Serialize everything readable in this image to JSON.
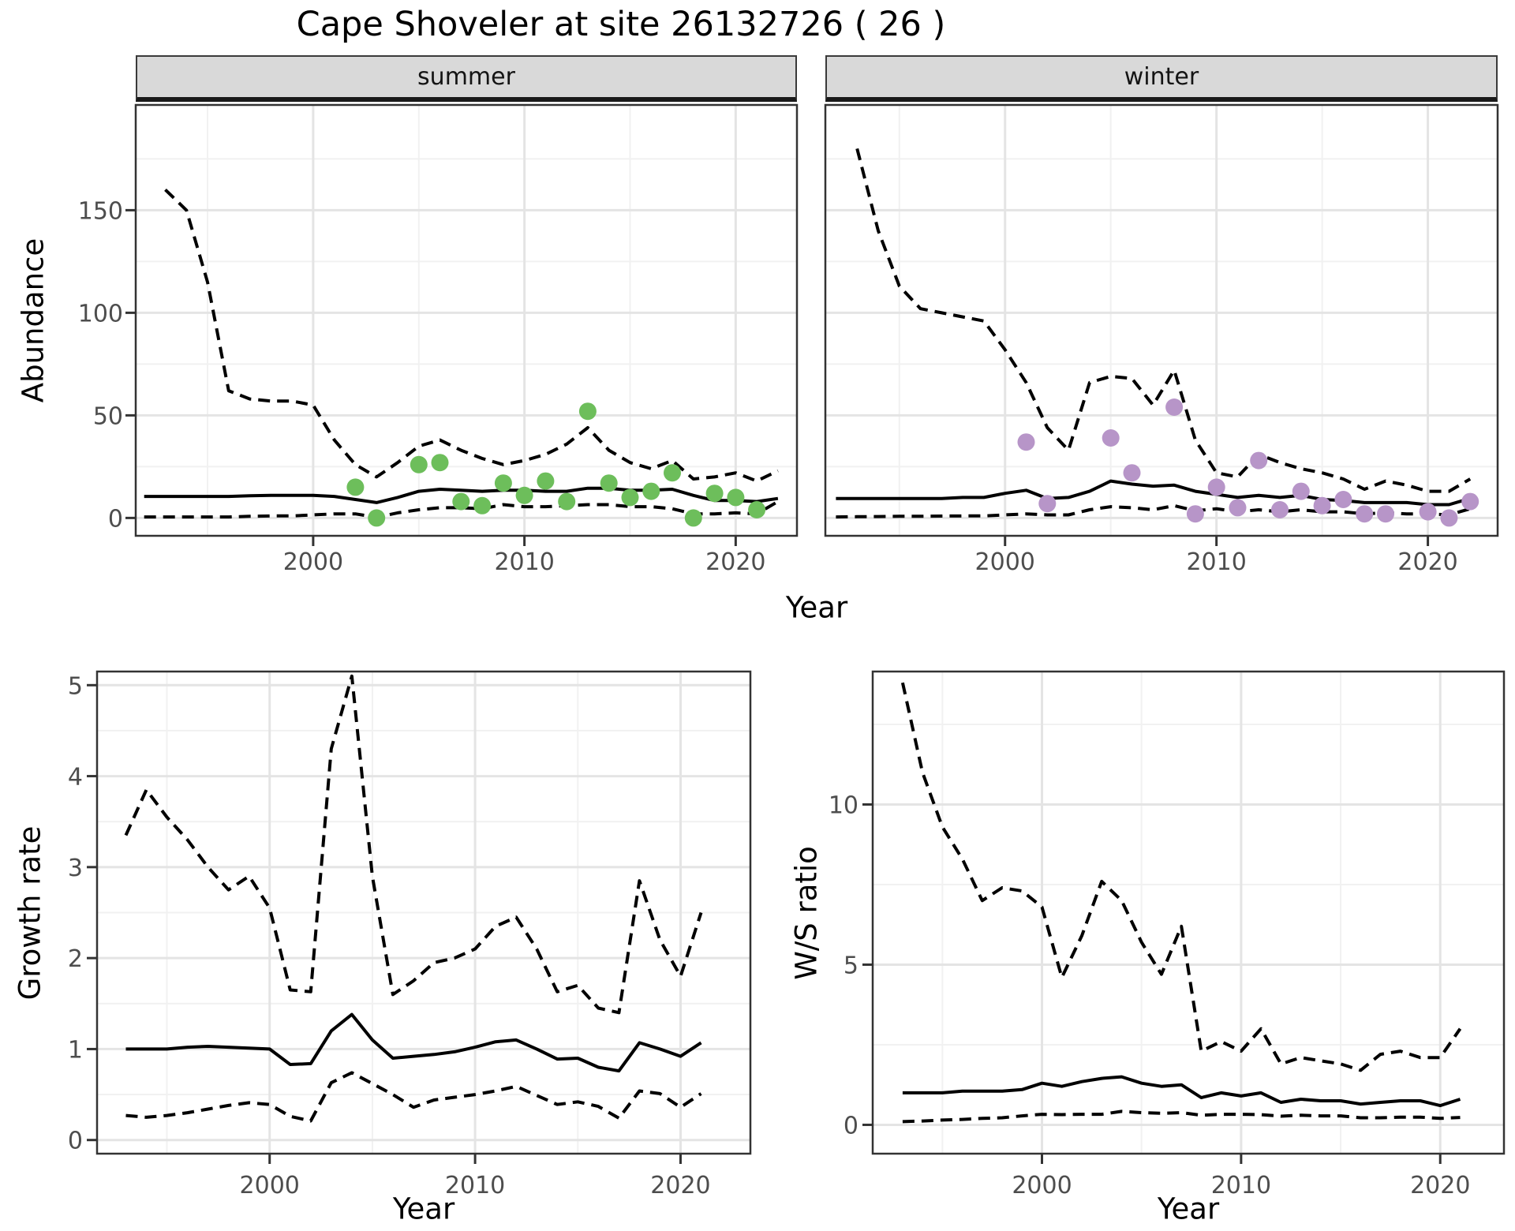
{
  "title": "Cape Shoveler at site 26132726 ( 26 )",
  "facets": {
    "summer": "summer",
    "winter": "winter"
  },
  "axes": {
    "abundance_label": "Abundance",
    "year_label": "Year",
    "growth_label": "Growth rate",
    "ws_label": "W/S ratio"
  },
  "colors": {
    "summer_points": "#6dbe5b",
    "winter_points": "#b795c8",
    "line": "#000000",
    "grid_major": "#e4e4e4",
    "grid_minor": "#f1f1f1",
    "strip_bg": "#d9d9d9",
    "panel_border": "#333333",
    "tick_text": "#4d4d4d"
  },
  "chart_data": [
    {
      "type": "line",
      "name": "abundance-summer",
      "facet": "summer",
      "xlabel": "Year",
      "ylabel": "Abundance",
      "xlim": [
        1991.6,
        2022.9
      ],
      "ylim": [
        -8.7,
        201.3
      ],
      "xticks": [
        2000,
        2010,
        2020
      ],
      "yticks": [
        0,
        50,
        100,
        150
      ],
      "xminor": [
        1995,
        2005,
        2015
      ],
      "yminor": [
        25,
        75,
        125,
        175
      ],
      "grid": true,
      "series": [
        {
          "name": "upper-ci",
          "style": "dashed",
          "x": [
            1993,
            1994,
            1995,
            1996,
            1997,
            1998,
            1999,
            2000,
            2001,
            2002,
            2003,
            2004,
            2005,
            2006,
            2007,
            2008,
            2009,
            2010,
            2011,
            2012,
            2013,
            2014,
            2015,
            2016,
            2017,
            2018,
            2019,
            2020,
            2021,
            2022
          ],
          "y": [
            160,
            150,
            115,
            62,
            58,
            57,
            57,
            55,
            38,
            26,
            20,
            27,
            35,
            38,
            33,
            29,
            26,
            28,
            31,
            36,
            44,
            33,
            27,
            24,
            28,
            19,
            20,
            22,
            18,
            23
          ]
        },
        {
          "name": "median",
          "style": "solid",
          "x": [
            1992,
            1993,
            1994,
            1995,
            1996,
            1997,
            1998,
            1999,
            2000,
            2001,
            2002,
            2003,
            2004,
            2005,
            2006,
            2007,
            2008,
            2009,
            2010,
            2011,
            2012,
            2013,
            2014,
            2015,
            2016,
            2017,
            2018,
            2019,
            2020,
            2021,
            2022
          ],
          "y": [
            10.5,
            10.5,
            10.5,
            10.5,
            10.5,
            10.8,
            11,
            11,
            11,
            10.5,
            9,
            7.5,
            10,
            13,
            14,
            13.5,
            13,
            13.5,
            13.5,
            13,
            13,
            14.5,
            14.5,
            13.5,
            13.5,
            14,
            11,
            8.5,
            8.5,
            8,
            9.5
          ]
        },
        {
          "name": "lower-ci",
          "style": "dashed",
          "x": [
            1992,
            1993,
            1994,
            1995,
            1996,
            1997,
            1998,
            1999,
            2000,
            2001,
            2002,
            2003,
            2004,
            2005,
            2006,
            2007,
            2008,
            2009,
            2010,
            2011,
            2012,
            2013,
            2014,
            2015,
            2016,
            2017,
            2018,
            2019,
            2020,
            2021,
            2022
          ],
          "y": [
            0.5,
            0.5,
            0.5,
            0.5,
            0.5,
            0.8,
            1,
            1,
            1.5,
            2,
            2,
            0.3,
            2.5,
            4,
            5,
            5,
            4.5,
            6.5,
            5.5,
            5.5,
            6,
            6.5,
            6.5,
            5.5,
            5.5,
            4.5,
            2,
            2,
            2.5,
            2,
            8
          ]
        }
      ],
      "points": {
        "name": "observed-counts",
        "color_key": "summer_points",
        "x": [
          2002,
          2003,
          2005,
          2006,
          2007,
          2008,
          2009,
          2010,
          2011,
          2012,
          2013,
          2014,
          2015,
          2016,
          2017,
          2018,
          2019,
          2020,
          2021
        ],
        "y": [
          15,
          0,
          26,
          27,
          8,
          6,
          17,
          11,
          18,
          8,
          52,
          17,
          10,
          13,
          22,
          0,
          12,
          10,
          4
        ]
      }
    },
    {
      "type": "line",
      "name": "abundance-winter",
      "facet": "winter",
      "xlabel": "Year",
      "ylabel": "Abundance",
      "xlim": [
        1991.5,
        2023.3
      ],
      "ylim": [
        -8.7,
        201.3
      ],
      "xticks": [
        2000,
        2010,
        2020
      ],
      "yticks": [
        0,
        50,
        100,
        150
      ],
      "xminor": [
        1995,
        2005,
        2015
      ],
      "yminor": [
        25,
        75,
        125,
        175
      ],
      "grid": true,
      "series": [
        {
          "name": "upper-ci",
          "style": "dashed",
          "x": [
            1993,
            1994,
            1995,
            1996,
            1997,
            1998,
            1999,
            2000,
            2001,
            2002,
            2003,
            2004,
            2005,
            2006,
            2007,
            2008,
            2009,
            2010,
            2011,
            2012,
            2013,
            2014,
            2015,
            2016,
            2017,
            2018,
            2019,
            2020,
            2021,
            2022
          ],
          "y": [
            180,
            140,
            113,
            102,
            100,
            98,
            96,
            82,
            66,
            44,
            33,
            66,
            69,
            68,
            55,
            72,
            38,
            22,
            20,
            31,
            27,
            24,
            22,
            19,
            14,
            18,
            16,
            13,
            13,
            19
          ]
        },
        {
          "name": "median",
          "style": "solid",
          "x": [
            1992,
            1993,
            1994,
            1995,
            1996,
            1997,
            1998,
            1999,
            2000,
            2001,
            2002,
            2003,
            2004,
            2005,
            2006,
            2007,
            2008,
            2009,
            2010,
            2011,
            2012,
            2013,
            2014,
            2015,
            2016,
            2017,
            2018,
            2019,
            2020,
            2021,
            2022
          ],
          "y": [
            9.5,
            9.5,
            9.5,
            9.5,
            9.5,
            9.5,
            10,
            10,
            12,
            13.5,
            9.5,
            10,
            13,
            18,
            16.5,
            15.5,
            16,
            13,
            11.5,
            10,
            11,
            10,
            11,
            9,
            8.5,
            7.5,
            7.5,
            7.5,
            6.5,
            6.5,
            9.5
          ]
        },
        {
          "name": "lower-ci",
          "style": "dashed",
          "x": [
            1992,
            1993,
            1994,
            1995,
            1996,
            1997,
            1998,
            1999,
            2000,
            2001,
            2002,
            2003,
            2004,
            2005,
            2006,
            2007,
            2008,
            2009,
            2010,
            2011,
            2012,
            2013,
            2014,
            2015,
            2016,
            2017,
            2018,
            2019,
            2020,
            2021,
            2022
          ],
          "y": [
            0.5,
            0.6,
            0.7,
            0.8,
            0.8,
            0.9,
            1,
            1,
            1.5,
            2,
            1.5,
            1.5,
            4,
            5.5,
            5,
            4,
            6,
            3.5,
            4.5,
            3,
            4,
            3,
            4,
            3,
            3,
            2,
            2.5,
            2,
            2,
            1.5,
            4.5
          ]
        }
      ],
      "points": {
        "name": "observed-counts",
        "color_key": "winter_points",
        "x": [
          2001,
          2002,
          2005,
          2006,
          2008,
          2009,
          2010,
          2011,
          2012,
          2013,
          2014,
          2015,
          2016,
          2017,
          2018,
          2020,
          2021,
          2022
        ],
        "y": [
          37,
          7,
          39,
          22,
          54,
          2,
          15,
          5,
          28,
          4,
          13,
          6,
          9,
          2,
          2,
          3,
          0,
          8
        ]
      }
    },
    {
      "type": "line",
      "name": "growth-rate",
      "xlabel": "Year",
      "ylabel": "Growth rate",
      "xlim": [
        1991.6,
        2023.4
      ],
      "ylim": [
        -0.15,
        5.15
      ],
      "xticks": [
        2000,
        2010,
        2020
      ],
      "yticks": [
        0,
        1,
        2,
        3,
        4,
        5
      ],
      "xminor": [
        1995,
        2005,
        2015
      ],
      "yminor": [
        0.5,
        1.5,
        2.5,
        3.5,
        4.5
      ],
      "grid": true,
      "series": [
        {
          "name": "upper-ci",
          "style": "dashed",
          "x": [
            1993,
            1994,
            1995,
            1996,
            1997,
            1998,
            1999,
            2000,
            2001,
            2002,
            2003,
            2004,
            2005,
            2006,
            2007,
            2008,
            2009,
            2010,
            2011,
            2012,
            2013,
            2014,
            2015,
            2016,
            2017,
            2018,
            2019,
            2020,
            2021
          ],
          "y": [
            3.35,
            3.85,
            3.55,
            3.3,
            3.0,
            2.75,
            2.9,
            2.55,
            1.65,
            1.63,
            4.3,
            5.1,
            2.9,
            1.6,
            1.75,
            1.95,
            2.0,
            2.1,
            2.35,
            2.45,
            2.1,
            1.63,
            1.7,
            1.45,
            1.4,
            2.85,
            2.2,
            1.8,
            2.5
          ]
        },
        {
          "name": "median",
          "style": "solid",
          "x": [
            1993,
            1994,
            1995,
            1996,
            1997,
            1998,
            1999,
            2000,
            2001,
            2002,
            2003,
            2004,
            2005,
            2006,
            2007,
            2008,
            2009,
            2010,
            2011,
            2012,
            2013,
            2014,
            2015,
            2016,
            2017,
            2018,
            2019,
            2020,
            2021
          ],
          "y": [
            1.0,
            1.0,
            1.0,
            1.02,
            1.03,
            1.02,
            1.01,
            1.0,
            0.83,
            0.84,
            1.2,
            1.38,
            1.1,
            0.9,
            0.92,
            0.94,
            0.97,
            1.02,
            1.08,
            1.1,
            1.0,
            0.89,
            0.9,
            0.8,
            0.76,
            1.07,
            1.0,
            0.92,
            1.07
          ]
        },
        {
          "name": "lower-ci",
          "style": "dashed",
          "x": [
            1993,
            1994,
            1995,
            1996,
            1997,
            1998,
            1999,
            2000,
            2001,
            2002,
            2003,
            2004,
            2005,
            2006,
            2007,
            2008,
            2009,
            2010,
            2011,
            2012,
            2013,
            2014,
            2015,
            2016,
            2017,
            2018,
            2019,
            2020,
            2021
          ],
          "y": [
            0.27,
            0.25,
            0.27,
            0.3,
            0.34,
            0.38,
            0.41,
            0.39,
            0.26,
            0.21,
            0.63,
            0.74,
            0.62,
            0.5,
            0.36,
            0.44,
            0.47,
            0.5,
            0.54,
            0.59,
            0.49,
            0.39,
            0.42,
            0.37,
            0.24,
            0.54,
            0.51,
            0.36,
            0.51
          ]
        }
      ]
    },
    {
      "type": "line",
      "name": "ws-ratio",
      "xlabel": "Year",
      "ylabel": "W/S ratio",
      "xlim": [
        1991.5,
        2023.2
      ],
      "ylim": [
        -0.9,
        14.15
      ],
      "xticks": [
        2000,
        2010,
        2020
      ],
      "yticks": [
        0,
        5,
        10
      ],
      "xminor": [
        1995,
        2005,
        2015
      ],
      "yminor": [
        2.5,
        7.5,
        12.5
      ],
      "grid": true,
      "series": [
        {
          "name": "upper-ci",
          "style": "dashed",
          "x": [
            1993,
            1994,
            1995,
            1996,
            1997,
            1998,
            1999,
            2000,
            2001,
            2002,
            2003,
            2004,
            2005,
            2006,
            2007,
            2008,
            2009,
            2010,
            2011,
            2012,
            2013,
            2014,
            2015,
            2016,
            2017,
            2018,
            2019,
            2020,
            2021
          ],
          "y": [
            13.8,
            11.0,
            9.3,
            8.3,
            7.0,
            7.4,
            7.3,
            6.8,
            4.6,
            5.9,
            7.6,
            7.0,
            5.7,
            4.7,
            6.2,
            2.3,
            2.6,
            2.3,
            3.0,
            1.9,
            2.1,
            2.0,
            1.9,
            1.7,
            2.2,
            2.3,
            2.1,
            2.1,
            3.0
          ]
        },
        {
          "name": "median",
          "style": "solid",
          "x": [
            1993,
            1994,
            1995,
            1996,
            1997,
            1998,
            1999,
            2000,
            2001,
            2002,
            2003,
            2004,
            2005,
            2006,
            2007,
            2008,
            2009,
            2010,
            2011,
            2012,
            2013,
            2014,
            2015,
            2016,
            2017,
            2018,
            2019,
            2020,
            2021
          ],
          "y": [
            1.0,
            1.0,
            1.0,
            1.05,
            1.05,
            1.05,
            1.1,
            1.3,
            1.2,
            1.35,
            1.45,
            1.5,
            1.3,
            1.2,
            1.25,
            0.85,
            1.0,
            0.9,
            1.0,
            0.7,
            0.8,
            0.75,
            0.75,
            0.65,
            0.7,
            0.75,
            0.75,
            0.6,
            0.8
          ]
        },
        {
          "name": "lower-ci",
          "style": "dashed",
          "x": [
            1993,
            1994,
            1995,
            1996,
            1997,
            1998,
            1999,
            2000,
            2001,
            2002,
            2003,
            2004,
            2005,
            2006,
            2007,
            2008,
            2009,
            2010,
            2011,
            2012,
            2013,
            2014,
            2015,
            2016,
            2017,
            2018,
            2019,
            2020,
            2021
          ],
          "y": [
            0.1,
            0.12,
            0.15,
            0.17,
            0.2,
            0.22,
            0.28,
            0.33,
            0.32,
            0.33,
            0.33,
            0.42,
            0.38,
            0.36,
            0.38,
            0.3,
            0.33,
            0.33,
            0.32,
            0.27,
            0.3,
            0.28,
            0.28,
            0.22,
            0.22,
            0.24,
            0.24,
            0.2,
            0.23
          ]
        }
      ]
    }
  ]
}
